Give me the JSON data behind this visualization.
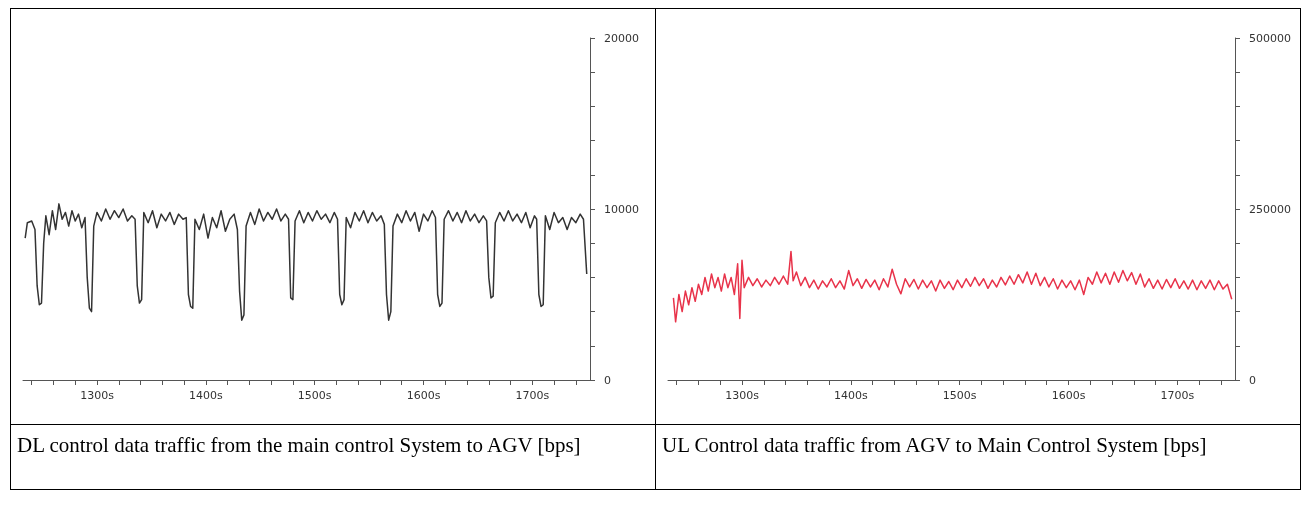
{
  "chart_data": [
    {
      "type": "line",
      "marker": "none",
      "annotations": [
        "DL control data traffic from the main control System to AGV [bps]"
      ],
      "xlim": [
        1232,
        1753
      ],
      "ylim": [
        0,
        20000
      ],
      "xticks": [
        {
          "value": 1240,
          "label": null
        },
        {
          "value": 1260,
          "label": null
        },
        {
          "value": 1280,
          "label": null
        },
        {
          "value": 1300,
          "label": "1300s"
        },
        {
          "value": 1320,
          "label": null
        },
        {
          "value": 1340,
          "label": null
        },
        {
          "value": 1360,
          "label": null
        },
        {
          "value": 1380,
          "label": null
        },
        {
          "value": 1400,
          "label": "1400s"
        },
        {
          "value": 1420,
          "label": null
        },
        {
          "value": 1440,
          "label": null
        },
        {
          "value": 1460,
          "label": null
        },
        {
          "value": 1480,
          "label": null
        },
        {
          "value": 1500,
          "label": "1500s"
        },
        {
          "value": 1520,
          "label": null
        },
        {
          "value": 1540,
          "label": null
        },
        {
          "value": 1560,
          "label": null
        },
        {
          "value": 1580,
          "label": null
        },
        {
          "value": 1600,
          "label": "1600s"
        },
        {
          "value": 1620,
          "label": null
        },
        {
          "value": 1640,
          "label": null
        },
        {
          "value": 1660,
          "label": null
        },
        {
          "value": 1680,
          "label": null
        },
        {
          "value": 1700,
          "label": "1700s"
        },
        {
          "value": 1720,
          "label": null
        },
        {
          "value": 1740,
          "label": null
        }
      ],
      "yticks": [
        0,
        {
          "value": 2000,
          "label": null
        },
        {
          "value": 4000,
          "label": null
        },
        {
          "value": 6000,
          "label": null
        },
        {
          "value": 8000,
          "label": null
        },
        10000,
        {
          "value": 12000,
          "label": null
        },
        {
          "value": 14000,
          "label": null
        },
        {
          "value": 16000,
          "label": null
        },
        {
          "value": 18000,
          "label": null
        },
        20000
      ],
      "series": [
        {
          "color": "#333333",
          "x": [
            1234,
            1236,
            1240,
            1243,
            1245,
            1247,
            1249,
            1251,
            1253,
            1256,
            1259,
            1262,
            1265,
            1268,
            1271,
            1274,
            1277,
            1280,
            1283,
            1286,
            1289,
            1291,
            1293,
            1295,
            1297,
            1300,
            1304,
            1308,
            1312,
            1316,
            1320,
            1324,
            1328,
            1332,
            1335,
            1337,
            1339,
            1341,
            1343,
            1347,
            1351,
            1355,
            1359,
            1363,
            1367,
            1371,
            1375,
            1379,
            1382,
            1384,
            1386,
            1388,
            1390,
            1394,
            1398,
            1402,
            1406,
            1410,
            1414,
            1418,
            1422,
            1426,
            1429,
            1431,
            1433,
            1435,
            1437,
            1441,
            1445,
            1449,
            1453,
            1457,
            1461,
            1465,
            1469,
            1473,
            1476,
            1478,
            1480,
            1482,
            1486,
            1490,
            1494,
            1498,
            1502,
            1506,
            1510,
            1514,
            1518,
            1521,
            1523,
            1525,
            1527,
            1529,
            1533,
            1537,
            1541,
            1545,
            1549,
            1553,
            1557,
            1561,
            1564,
            1566,
            1568,
            1570,
            1572,
            1576,
            1580,
            1584,
            1588,
            1592,
            1596,
            1600,
            1604,
            1608,
            1611,
            1613,
            1615,
            1617,
            1619,
            1623,
            1627,
            1631,
            1635,
            1639,
            1643,
            1647,
            1651,
            1655,
            1658,
            1660,
            1662,
            1664,
            1666,
            1670,
            1674,
            1678,
            1682,
            1686,
            1690,
            1694,
            1698,
            1702,
            1704,
            1706,
            1708,
            1710,
            1712,
            1716,
            1720,
            1724,
            1728,
            1732,
            1736,
            1740,
            1744,
            1747,
            1750
          ],
          "values": [
            8300,
            9200,
            9300,
            8800,
            5500,
            4400,
            4500,
            8000,
            9600,
            8500,
            9900,
            8800,
            10300,
            9400,
            9800,
            9000,
            9900,
            9300,
            9700,
            8900,
            9500,
            6000,
            4200,
            4000,
            9000,
            9800,
            9300,
            10000,
            9400,
            9900,
            9500,
            10000,
            9300,
            9600,
            9400,
            5500,
            4500,
            4700,
            9800,
            9200,
            9900,
            8900,
            9700,
            9300,
            9800,
            9100,
            9700,
            9400,
            9500,
            5000,
            4300,
            4200,
            9400,
            8800,
            9700,
            8300,
            9500,
            8900,
            9900,
            8700,
            9400,
            9700,
            8800,
            5200,
            3500,
            3800,
            9000,
            9800,
            9100,
            10000,
            9300,
            9800,
            9400,
            10000,
            9300,
            9700,
            9400,
            4800,
            4700,
            9300,
            9900,
            9200,
            9800,
            9300,
            9900,
            9400,
            9700,
            9200,
            9800,
            9400,
            5000,
            4400,
            4700,
            9500,
            8900,
            9800,
            9300,
            9900,
            9200,
            9800,
            9300,
            9600,
            9100,
            5000,
            3500,
            4000,
            9000,
            9700,
            9200,
            9900,
            9300,
            9800,
            8700,
            9700,
            9300,
            9900,
            9500,
            5000,
            4300,
            4500,
            9400,
            9900,
            9300,
            9800,
            9200,
            9900,
            9300,
            9700,
            9200,
            9600,
            9300,
            6000,
            4800,
            4900,
            9200,
            9800,
            9300,
            9900,
            9300,
            9700,
            9200,
            9800,
            8900,
            9600,
            9400,
            5000,
            4300,
            4400,
            9600,
            8800,
            9800,
            9200,
            9500,
            8800,
            9500,
            9200,
            9700,
            9400,
            6200
          ]
        }
      ]
    },
    {
      "type": "line",
      "marker": "none",
      "annotations": [
        "UL Control data traffic from AGV to Main Control System [bps]"
      ],
      "xlim": [
        1232,
        1753
      ],
      "ylim": [
        0,
        500000
      ],
      "xticks": [
        {
          "value": 1240,
          "label": null
        },
        {
          "value": 1260,
          "label": null
        },
        {
          "value": 1280,
          "label": null
        },
        {
          "value": 1300,
          "label": "1300s"
        },
        {
          "value": 1320,
          "label": null
        },
        {
          "value": 1340,
          "label": null
        },
        {
          "value": 1360,
          "label": null
        },
        {
          "value": 1380,
          "label": null
        },
        {
          "value": 1400,
          "label": "1400s"
        },
        {
          "value": 1420,
          "label": null
        },
        {
          "value": 1440,
          "label": null
        },
        {
          "value": 1460,
          "label": null
        },
        {
          "value": 1480,
          "label": null
        },
        {
          "value": 1500,
          "label": "1500s"
        },
        {
          "value": 1520,
          "label": null
        },
        {
          "value": 1540,
          "label": null
        },
        {
          "value": 1560,
          "label": null
        },
        {
          "value": 1580,
          "label": null
        },
        {
          "value": 1600,
          "label": "1600s"
        },
        {
          "value": 1620,
          "label": null
        },
        {
          "value": 1640,
          "label": null
        },
        {
          "value": 1660,
          "label": null
        },
        {
          "value": 1680,
          "label": null
        },
        {
          "value": 1700,
          "label": "1700s"
        },
        {
          "value": 1720,
          "label": null
        },
        {
          "value": 1740,
          "label": null
        }
      ],
      "yticks": [
        0,
        {
          "value": 50000,
          "label": null
        },
        {
          "value": 100000,
          "label": null
        },
        {
          "value": 150000,
          "label": null
        },
        {
          "value": 200000,
          "label": null
        },
        250000,
        {
          "value": 300000,
          "label": null
        },
        {
          "value": 350000,
          "label": null
        },
        {
          "value": 400000,
          "label": null
        },
        {
          "value": 450000,
          "label": null
        },
        500000
      ],
      "series": [
        {
          "color": "#e8334a",
          "x": [
            1237,
            1239,
            1242,
            1245,
            1248,
            1251,
            1254,
            1257,
            1260,
            1263,
            1266,
            1269,
            1272,
            1275,
            1278,
            1281,
            1284,
            1287,
            1290,
            1293,
            1296,
            1298,
            1300,
            1302,
            1306,
            1310,
            1314,
            1318,
            1322,
            1326,
            1330,
            1334,
            1338,
            1342,
            1345,
            1347,
            1350,
            1354,
            1358,
            1362,
            1366,
            1370,
            1374,
            1378,
            1382,
            1386,
            1390,
            1394,
            1398,
            1402,
            1406,
            1410,
            1414,
            1418,
            1422,
            1426,
            1430,
            1434,
            1438,
            1442,
            1446,
            1450,
            1454,
            1458,
            1462,
            1466,
            1470,
            1474,
            1478,
            1482,
            1486,
            1490,
            1494,
            1498,
            1502,
            1506,
            1510,
            1514,
            1518,
            1522,
            1526,
            1530,
            1534,
            1538,
            1542,
            1546,
            1550,
            1554,
            1558,
            1562,
            1566,
            1570,
            1574,
            1578,
            1582,
            1586,
            1590,
            1594,
            1598,
            1602,
            1606,
            1610,
            1614,
            1618,
            1622,
            1626,
            1630,
            1634,
            1638,
            1642,
            1646,
            1650,
            1654,
            1658,
            1662,
            1666,
            1670,
            1674,
            1678,
            1682,
            1686,
            1690,
            1694,
            1698,
            1702,
            1706,
            1710,
            1714,
            1718,
            1722,
            1726,
            1730,
            1734,
            1738,
            1742,
            1746,
            1750
          ],
          "values": [
            120000,
            85000,
            125000,
            100000,
            130000,
            110000,
            135000,
            115000,
            140000,
            125000,
            150000,
            130000,
            155000,
            135000,
            150000,
            130000,
            155000,
            135000,
            150000,
            125000,
            170000,
            90000,
            175000,
            135000,
            150000,
            138000,
            148000,
            136000,
            146000,
            138000,
            150000,
            140000,
            152000,
            140000,
            188000,
            145000,
            158000,
            138000,
            150000,
            135000,
            146000,
            133000,
            145000,
            136000,
            148000,
            135000,
            145000,
            133000,
            160000,
            138000,
            148000,
            134000,
            147000,
            136000,
            146000,
            132000,
            148000,
            136000,
            162000,
            140000,
            126000,
            148000,
            136000,
            147000,
            133000,
            146000,
            135000,
            145000,
            130000,
            146000,
            134000,
            144000,
            132000,
            146000,
            135000,
            148000,
            137000,
            150000,
            138000,
            148000,
            134000,
            146000,
            136000,
            150000,
            139000,
            152000,
            140000,
            154000,
            142000,
            158000,
            140000,
            156000,
            138000,
            150000,
            136000,
            148000,
            133000,
            146000,
            135000,
            145000,
            132000,
            146000,
            125000,
            150000,
            140000,
            158000,
            142000,
            156000,
            140000,
            158000,
            143000,
            160000,
            145000,
            157000,
            140000,
            155000,
            136000,
            148000,
            134000,
            146000,
            133000,
            147000,
            135000,
            148000,
            134000,
            145000,
            133000,
            146000,
            132000,
            145000,
            134000,
            146000,
            132000,
            145000,
            133000,
            140000,
            118000
          ]
        }
      ]
    }
  ]
}
